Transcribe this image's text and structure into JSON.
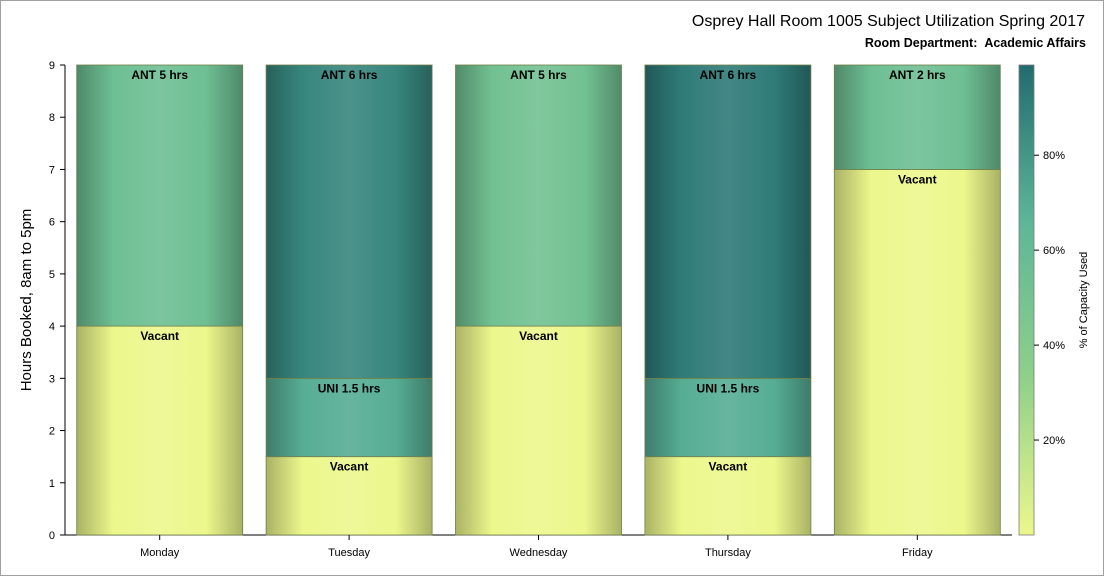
{
  "chart_data": {
    "type": "bar",
    "stacked": true,
    "title": "Osprey Hall Room 1005 Subject Utilization Spring 2017",
    "subtitle_label": "Room Department:",
    "subtitle_value": "Academic Affairs",
    "ylabel": "Hours Booked, 8am to 5pm",
    "xlabel": "",
    "ylim": [
      0,
      9
    ],
    "yticks": [
      0,
      1,
      2,
      3,
      4,
      5,
      6,
      7,
      8,
      9
    ],
    "categories": [
      "Monday",
      "Tuesday",
      "Wednesday",
      "Thursday",
      "Friday"
    ],
    "grid": false,
    "bars": [
      {
        "category": "Monday",
        "segments": [
          {
            "label": "Vacant",
            "hours": 4,
            "capacity_pct": 0
          },
          {
            "label": "ANT 5 hrs",
            "hours": 5,
            "capacity_pct": 55
          }
        ]
      },
      {
        "category": "Tuesday",
        "segments": [
          {
            "label": "Vacant",
            "hours": 1.5,
            "capacity_pct": 0
          },
          {
            "label": "UNI 1.5 hrs",
            "hours": 1.5,
            "capacity_pct": 70
          },
          {
            "label": "ANT 6 hrs",
            "hours": 6,
            "capacity_pct": 87
          }
        ]
      },
      {
        "category": "Wednesday",
        "segments": [
          {
            "label": "Vacant",
            "hours": 4,
            "capacity_pct": 0
          },
          {
            "label": "ANT 5 hrs",
            "hours": 5,
            "capacity_pct": 52
          }
        ]
      },
      {
        "category": "Thursday",
        "segments": [
          {
            "label": "Vacant",
            "hours": 1.5,
            "capacity_pct": 0
          },
          {
            "label": "UNI 1.5 hrs",
            "hours": 1.5,
            "capacity_pct": 70
          },
          {
            "label": "ANT 6 hrs",
            "hours": 6,
            "capacity_pct": 92
          }
        ]
      },
      {
        "category": "Friday",
        "segments": [
          {
            "label": "Vacant",
            "hours": 7,
            "capacity_pct": 0
          },
          {
            "label": "ANT 2 hrs",
            "hours": 2,
            "capacity_pct": 55
          }
        ]
      }
    ],
    "colorbar": {
      "label": "% of Capacity Used",
      "ticks": [
        "20%",
        "40%",
        "60%",
        "80%"
      ],
      "tick_values": [
        20,
        40,
        60,
        80
      ],
      "range": [
        0,
        99
      ],
      "position": "right",
      "colors": [
        "#ecf78c",
        "#8fd08a",
        "#5db698",
        "#226b6f"
      ]
    }
  }
}
